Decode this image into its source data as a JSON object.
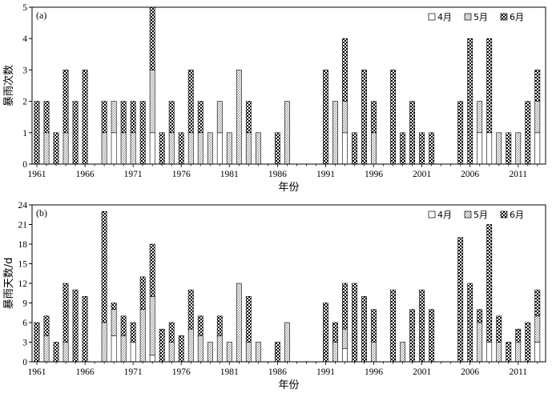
{
  "chart_data": [
    {
      "type": "bar",
      "stacked": true,
      "panel_label": "(a)",
      "xlabel": "年份",
      "ylabel": "暴雨次数",
      "ylim": [
        0,
        5
      ],
      "yticks": [
        0,
        1,
        2,
        3,
        4,
        5
      ],
      "x": [
        1961,
        1962,
        1963,
        1964,
        1965,
        1966,
        1967,
        1968,
        1969,
        1970,
        1971,
        1972,
        1973,
        1974,
        1975,
        1976,
        1977,
        1978,
        1979,
        1980,
        1981,
        1982,
        1983,
        1984,
        1985,
        1986,
        1987,
        1988,
        1989,
        1990,
        1991,
        1992,
        1993,
        1994,
        1995,
        1996,
        1997,
        1998,
        1999,
        2000,
        2001,
        2002,
        2003,
        2004,
        2005,
        2006,
        2007,
        2008,
        2009,
        2010,
        2011,
        2012,
        2013
      ],
      "xticks": [
        "1961",
        "1966",
        "1971",
        "1976",
        "1981",
        "1986",
        "1991",
        "1996",
        "2001",
        "2006",
        "2011"
      ],
      "legend": [
        "4月",
        "5月",
        "6月"
      ],
      "series": [
        {
          "name": "4月",
          "values": [
            0,
            0,
            0,
            0,
            0,
            0,
            0,
            0,
            1,
            0,
            0,
            0,
            1,
            0,
            0,
            0,
            0,
            0,
            0,
            1,
            0,
            0,
            0,
            0,
            0,
            0,
            0,
            0,
            0,
            0,
            0,
            0,
            1,
            0,
            0,
            0,
            0,
            0,
            0,
            0,
            0,
            0,
            0,
            0,
            0,
            0,
            1,
            1,
            0,
            0,
            0,
            0,
            1
          ]
        },
        {
          "name": "5月",
          "values": [
            0,
            1,
            0,
            1,
            0,
            0,
            0,
            1,
            1,
            1,
            1,
            0,
            2,
            0,
            1,
            0,
            1,
            1,
            1,
            1,
            1,
            3,
            1,
            1,
            0,
            0,
            2,
            0,
            0,
            0,
            0,
            2,
            1,
            0,
            0,
            1,
            0,
            0,
            0,
            0,
            0,
            0,
            0,
            0,
            0,
            0,
            1,
            0,
            1,
            0,
            1,
            0,
            1
          ]
        },
        {
          "name": "6月",
          "values": [
            2,
            1,
            1,
            2,
            2,
            3,
            0,
            1,
            0,
            1,
            1,
            2,
            2,
            1,
            1,
            1,
            2,
            1,
            0,
            0,
            0,
            0,
            1,
            0,
            0,
            1,
            0,
            0,
            0,
            0,
            3,
            0,
            2,
            1,
            3,
            1,
            0,
            3,
            1,
            2,
            1,
            1,
            0,
            0,
            2,
            4,
            0,
            3,
            0,
            1,
            0,
            2,
            1
          ]
        }
      ]
    },
    {
      "type": "bar",
      "stacked": true,
      "panel_label": "(b)",
      "xlabel": "年份",
      "ylabel": "暴雨天数/d",
      "ylim": [
        0,
        24
      ],
      "yticks": [
        0,
        3,
        6,
        9,
        12,
        15,
        18,
        21,
        24
      ],
      "x": [
        1961,
        1962,
        1963,
        1964,
        1965,
        1966,
        1967,
        1968,
        1969,
        1970,
        1971,
        1972,
        1973,
        1974,
        1975,
        1976,
        1977,
        1978,
        1979,
        1980,
        1981,
        1982,
        1983,
        1984,
        1985,
        1986,
        1987,
        1988,
        1989,
        1990,
        1991,
        1992,
        1993,
        1994,
        1995,
        1996,
        1997,
        1998,
        1999,
        2000,
        2001,
        2002,
        2003,
        2004,
        2005,
        2006,
        2007,
        2008,
        2009,
        2010,
        2011,
        2012,
        2013
      ],
      "xticks": [
        "1961",
        "1966",
        "1971",
        "1976",
        "1981",
        "1986",
        "1991",
        "1996",
        "2001",
        "2006",
        "2011"
      ],
      "legend": [
        "4月",
        "5月",
        "6月"
      ],
      "series": [
        {
          "name": "4月",
          "values": [
            0,
            0,
            0,
            0,
            0,
            0,
            0,
            0,
            4,
            0,
            3,
            0,
            1,
            0,
            0,
            0,
            0,
            0,
            0,
            0,
            0,
            0,
            0,
            0,
            0,
            0,
            0,
            0,
            0,
            0,
            0,
            0,
            2,
            0,
            0,
            0,
            0,
            0,
            0,
            0,
            0,
            0,
            0,
            0,
            0,
            0,
            0,
            3,
            0,
            0,
            0,
            0,
            3
          ]
        },
        {
          "name": "5月",
          "values": [
            0,
            4,
            0,
            3,
            0,
            0,
            0,
            6,
            4,
            4,
            0,
            8,
            9,
            0,
            3,
            0,
            5,
            4,
            3,
            4,
            3,
            12,
            3,
            3,
            0,
            0,
            6,
            0,
            0,
            0,
            0,
            3,
            3,
            0,
            0,
            3,
            0,
            0,
            3,
            0,
            0,
            0,
            0,
            0,
            0,
            0,
            6,
            0,
            3,
            0,
            3,
            0,
            4
          ]
        },
        {
          "name": "6月",
          "values": [
            6,
            3,
            3,
            9,
            11,
            10,
            0,
            17,
            1,
            3,
            3,
            5,
            8,
            5,
            3,
            4,
            6,
            3,
            0,
            3,
            0,
            0,
            7,
            0,
            0,
            3,
            0,
            0,
            0,
            0,
            9,
            3,
            7,
            12,
            10,
            5,
            0,
            11,
            0,
            8,
            11,
            8,
            0,
            0,
            19,
            12,
            2,
            18,
            4,
            3,
            2,
            6,
            4
          ]
        }
      ]
    }
  ]
}
